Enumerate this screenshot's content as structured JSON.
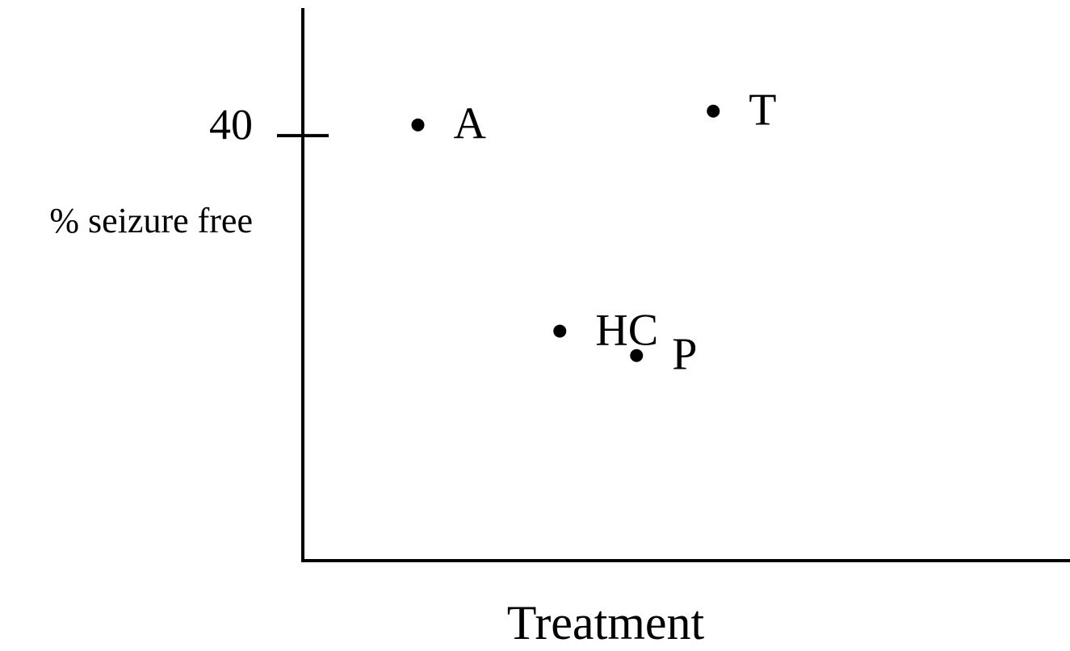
{
  "chart_data": {
    "type": "scatter",
    "x_label": "Treatment",
    "y_label": "% seizure free",
    "labels": [
      "A",
      "HC",
      "P",
      "T"
    ],
    "x": [
      1.5,
      3.35,
      4.35,
      5.35
    ],
    "values": [
      41,
      21.6,
      19.3,
      42.3
    ],
    "color": "#000000",
    "xlim": [
      0,
      10
    ],
    "ylim": [
      0,
      52
    ],
    "yticks": [
      40
    ]
  }
}
